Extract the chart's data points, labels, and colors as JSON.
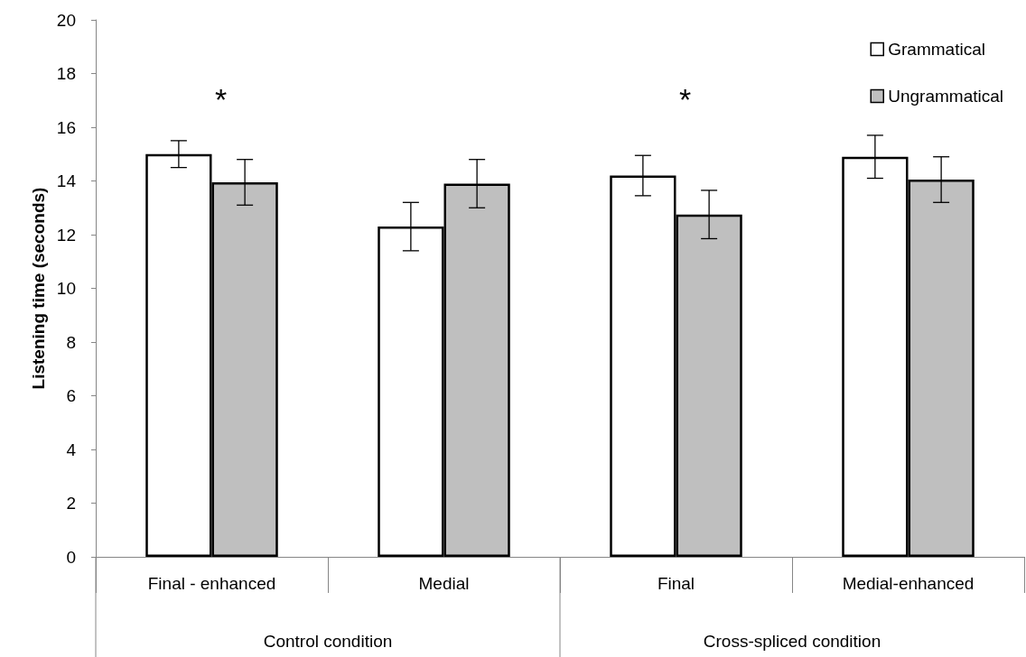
{
  "chart_data": {
    "type": "bar",
    "ylabel": "Listening time (seconds)",
    "categories": [
      "Final - enhanced",
      "Medial",
      "Final",
      "Medial-enhanced"
    ],
    "series": [
      {
        "name": "Grammatical",
        "color": "#ffffff",
        "values": [
          15.0,
          12.3,
          14.2,
          14.9
        ],
        "errors": [
          0.5,
          0.9,
          0.75,
          0.8
        ]
      },
      {
        "name": "Ungrammatical",
        "color": "#bfbfbf",
        "values": [
          13.95,
          13.9,
          12.75,
          14.05
        ],
        "errors": [
          0.85,
          0.9,
          0.9,
          0.85
        ]
      }
    ],
    "ylim": [
      0,
      20
    ],
    "yticks": [
      0,
      2,
      4,
      6,
      8,
      10,
      12,
      14,
      16,
      18,
      20
    ],
    "grid": false,
    "legend": "top right",
    "annotations": [
      "*",
      "*",
      "Control condition",
      "Cross-spliced condition"
    ]
  }
}
